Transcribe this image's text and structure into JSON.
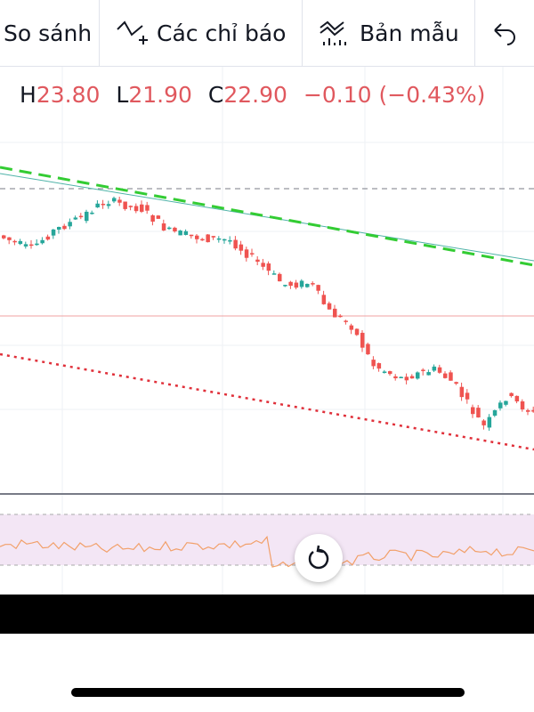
{
  "toolbar": {
    "items": [
      "So sánh",
      "Các chỉ báo",
      "Bản mẫu"
    ]
  },
  "ohlc": {
    "items": [
      {
        "label": "H",
        "value": "23.80"
      },
      {
        "label": "L",
        "value": "21.90"
      },
      {
        "label": "C",
        "value": "22.90"
      }
    ],
    "change": "−0.10 (−0.43%)"
  }
}
